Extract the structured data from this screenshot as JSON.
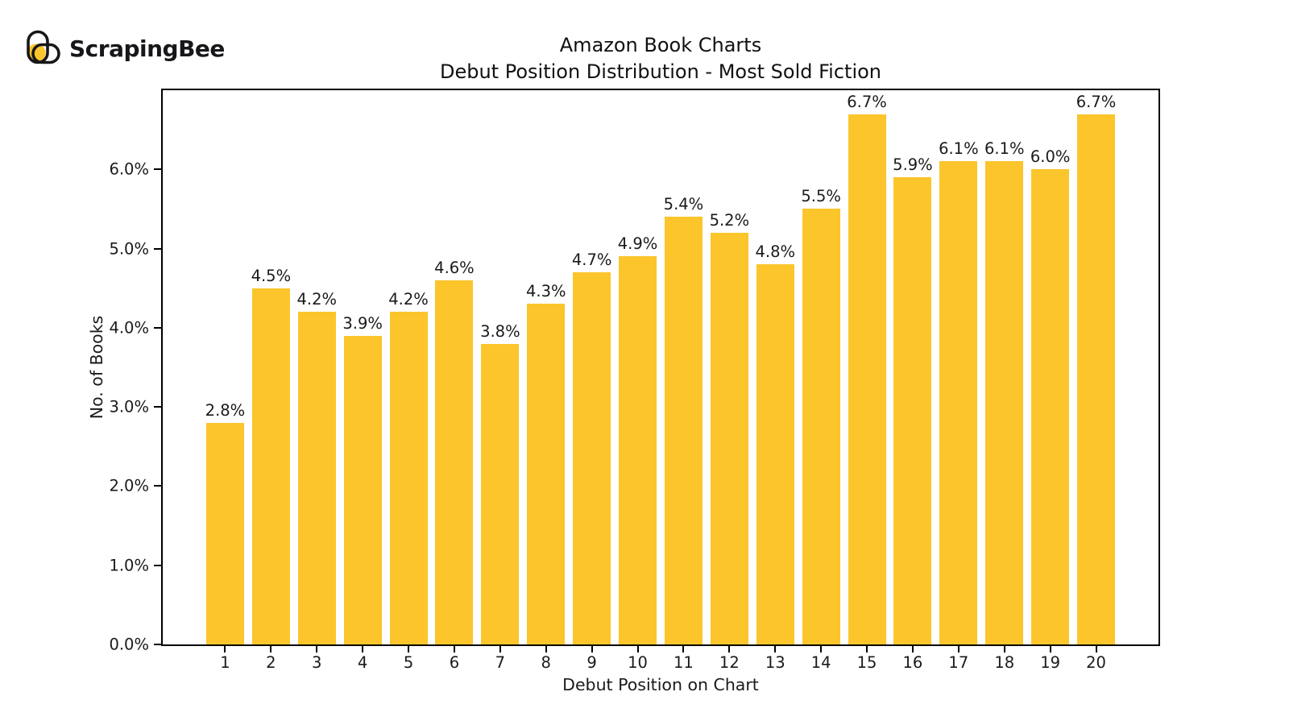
{
  "logo": {
    "text": "ScrapingBee"
  },
  "title": {
    "line1": "Amazon Book Charts",
    "line2": "Debut Position Distribution - Most Sold Fiction"
  },
  "chart_data": {
    "type": "bar",
    "title": "Amazon Book Charts — Debut Position Distribution - Most Sold Fiction",
    "categories": [
      "1",
      "2",
      "3",
      "4",
      "5",
      "6",
      "7",
      "8",
      "9",
      "10",
      "11",
      "12",
      "13",
      "14",
      "15",
      "16",
      "17",
      "18",
      "19",
      "20"
    ],
    "values": [
      2.8,
      4.5,
      4.2,
      3.9,
      4.2,
      4.6,
      3.8,
      4.3,
      4.7,
      4.9,
      5.4,
      5.2,
      4.8,
      5.5,
      6.7,
      5.9,
      6.1,
      6.1,
      6.0,
      6.7
    ],
    "bar_labels": [
      "2.8%",
      "4.5%",
      "4.2%",
      "3.9%",
      "4.2%",
      "4.6%",
      "3.8%",
      "4.3%",
      "4.7%",
      "4.9%",
      "5.4%",
      "5.2%",
      "4.8%",
      "5.5%",
      "6.7%",
      "5.9%",
      "6.1%",
      "6.1%",
      "6.0%",
      "6.7%"
    ],
    "xlabel": "Debut Position on Chart",
    "ylabel": "No. of Books",
    "ylim": [
      0,
      7.0
    ],
    "yticks": [
      {
        "value": 0,
        "label": "0.0%"
      },
      {
        "value": 1,
        "label": "1.0%"
      },
      {
        "value": 2,
        "label": "2.0%"
      },
      {
        "value": 3,
        "label": "3.0%"
      },
      {
        "value": 4,
        "label": "4.0%"
      },
      {
        "value": 5,
        "label": "5.0%"
      },
      {
        "value": 6,
        "label": "6.0%"
      }
    ],
    "grid": false,
    "legend_position": "none",
    "bar_color": "#fbc52b"
  },
  "colors": {
    "bar": "#fbc52b",
    "text": "#1a1a1a",
    "axis": "#000000",
    "background": "#ffffff",
    "logo_yellow": "#fbc52b",
    "logo_dark": "#17171b"
  }
}
